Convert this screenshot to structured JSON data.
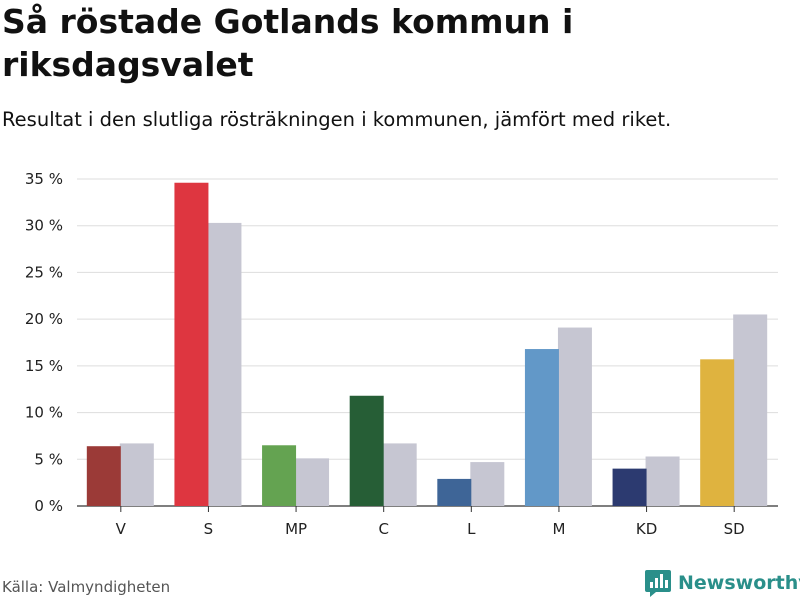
{
  "title": "Så röstade Gotlands kommun i riksdagsvalet",
  "subtitle": "Resultat i den slutliga rösträkningen i kommunen, jämfört med riket.",
  "source": "Källa: Valmyndigheten",
  "brand": {
    "name": "Newsworthy",
    "icon": "newsworthy-logo-icon",
    "color": "#2a8f8a"
  },
  "chart_data": {
    "type": "bar",
    "categories": [
      "V",
      "S",
      "MP",
      "C",
      "L",
      "M",
      "KD",
      "SD"
    ],
    "series": [
      {
        "values": [
          6.4,
          34.6,
          6.5,
          11.8,
          2.9,
          16.8,
          4.0,
          15.7
        ],
        "colors": [
          "#9b3a37",
          "#de3640",
          "#64a351",
          "#265e36",
          "#3e6597",
          "#6298c8",
          "#2c3a70",
          "#dfb33f"
        ]
      },
      {
        "values": [
          6.7,
          30.3,
          5.1,
          6.7,
          4.7,
          19.1,
          5.3,
          20.5
        ],
        "color": "#c6c6d2"
      }
    ],
    "ylim": [
      0,
      35
    ],
    "yticks": [
      0,
      5,
      10,
      15,
      20,
      25,
      30,
      35
    ],
    "ytick_suffix": " %",
    "grid": true,
    "xlabel": "",
    "ylabel": ""
  }
}
